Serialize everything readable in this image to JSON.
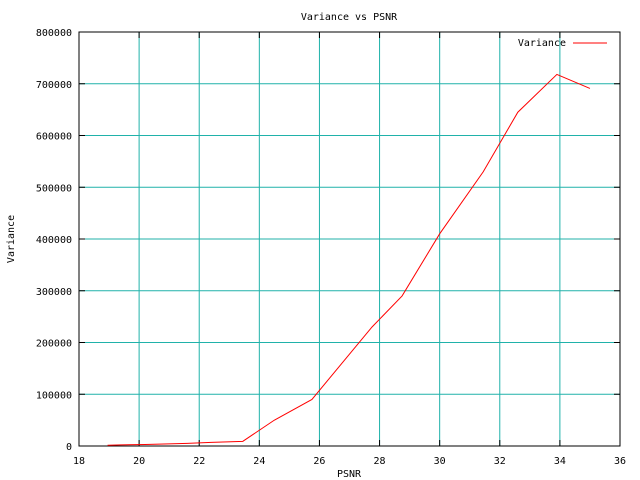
{
  "chart_data": {
    "type": "line",
    "title": "Variance vs PSNR",
    "xlabel": "PSNR",
    "ylabel": "Variance",
    "xlim": [
      18,
      36
    ],
    "ylim": [
      0,
      800000
    ],
    "xticks": [
      18,
      20,
      22,
      24,
      26,
      28,
      30,
      32,
      34,
      36
    ],
    "yticks": [
      0,
      100000,
      200000,
      300000,
      400000,
      500000,
      600000,
      700000,
      800000
    ],
    "grid": true,
    "legend_position": "top-right",
    "colors": {
      "grid": "#20b2aa",
      "series": "#ff0000",
      "frame": "#000000"
    },
    "series": [
      {
        "name": "Variance",
        "x": [
          18.95,
          19.4,
          20.2,
          21.6,
          22.4,
          23.45,
          24.5,
          25.75,
          26.75,
          27.75,
          28.75,
          30.0,
          31.45,
          32.6,
          33.9,
          35.0
        ],
        "y": [
          1500,
          2200,
          3000,
          5000,
          7000,
          9000,
          50000,
          90000,
          160000,
          230000,
          290000,
          410000,
          530000,
          645000,
          718000,
          691000
        ]
      }
    ]
  }
}
